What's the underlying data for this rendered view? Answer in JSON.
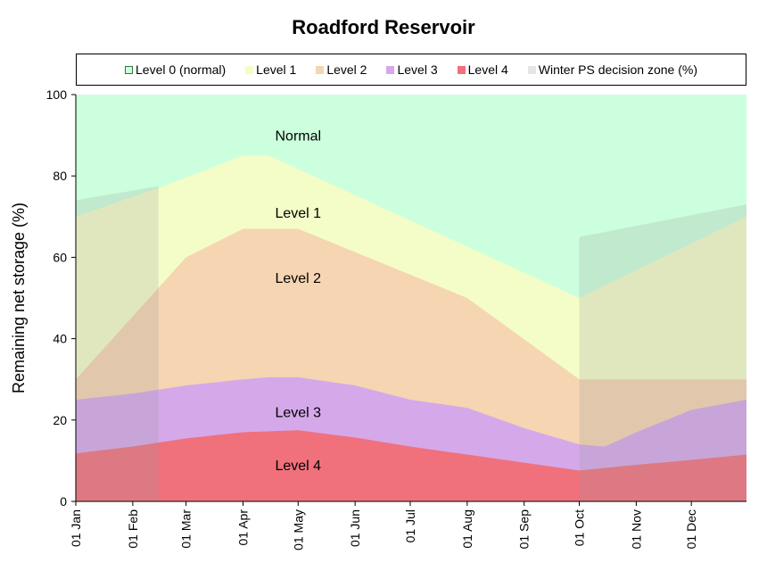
{
  "chart_data": {
    "type": "area",
    "title": "Roadford Reservoir",
    "xlabel": "",
    "ylabel": "Remaining  net storage  (%)",
    "ylim": [
      0,
      100
    ],
    "yticks": [
      "0",
      "20",
      "40",
      "60",
      "80",
      "100"
    ],
    "xlim": [
      "2000-01-01",
      "2000-12-31"
    ],
    "xticks": [
      "01 Jan",
      "01 Feb",
      "01 Mar",
      "01 Apr",
      "01 May",
      "01 Jun",
      "01 Jul",
      "01 Aug",
      "01 Sep",
      "01 Oct",
      "01 Nov",
      "01 Dec"
    ],
    "xtick_dates": [
      "2000-01-01",
      "2000-02-01",
      "2000-03-01",
      "2000-04-01",
      "2000-05-01",
      "2000-06-01",
      "2000-07-01",
      "2000-08-01",
      "2000-09-01",
      "2000-10-01",
      "2000-11-01",
      "2000-12-01"
    ],
    "grid": false,
    "legend_position": "top",
    "series": [
      {
        "name": "Level 0 (normal)",
        "color": "#ccffdd",
        "x": [
          "2000-01-01",
          "2000-12-31"
        ],
        "y": [
          100,
          100
        ]
      },
      {
        "name": "Level 1",
        "color": "#f4fdc8",
        "x": [
          "2000-01-01",
          "2000-02-15",
          "2000-04-01",
          "2000-04-15",
          "2000-10-01",
          "2000-12-31"
        ],
        "y": [
          70,
          77,
          85,
          85,
          50,
          70
        ]
      },
      {
        "name": "Level 2",
        "color": "#f5d5b2",
        "x": [
          "2000-01-01",
          "2000-03-01",
          "2000-04-01",
          "2000-05-01",
          "2000-08-01",
          "2000-10-01",
          "2000-12-31"
        ],
        "y": [
          30,
          60,
          67,
          67,
          50,
          30,
          30
        ]
      },
      {
        "name": "Level 3",
        "color": "#d5a8ea",
        "x": [
          "2000-01-01",
          "2000-02-01",
          "2000-03-01",
          "2000-04-01",
          "2000-04-15",
          "2000-05-01",
          "2000-06-01",
          "2000-07-01",
          "2000-08-01",
          "2000-09-01",
          "2000-10-01",
          "2000-10-15",
          "2000-11-01",
          "2000-12-01",
          "2000-12-31"
        ],
        "y": [
          25,
          26.5,
          28.5,
          30,
          30.5,
          30.5,
          28.5,
          25,
          23,
          18,
          14,
          13.5,
          17,
          22.5,
          25
        ]
      },
      {
        "name": "Level 4",
        "color": "#f0707c",
        "x": [
          "2000-01-01",
          "2000-02-01",
          "2000-03-01",
          "2000-04-01",
          "2000-05-01",
          "2000-06-01",
          "2000-07-01",
          "2000-08-01",
          "2000-09-01",
          "2000-10-01",
          "2000-11-01",
          "2000-12-01",
          "2000-12-31"
        ],
        "y": [
          11.8,
          13.5,
          15.5,
          17,
          17.5,
          15.7,
          13.5,
          11.5,
          9.5,
          7.6,
          9,
          10.2,
          11.5
        ]
      }
    ],
    "decision_zone": {
      "name": "Winter PS decision zone (%)",
      "color": "#e6e6e6",
      "segments": [
        {
          "x": [
            "2000-01-01",
            "2000-02-15"
          ],
          "top": [
            74,
            77.5
          ]
        },
        {
          "x": [
            "2000-10-01",
            "2000-12-31"
          ],
          "top": [
            65,
            73
          ]
        }
      ]
    },
    "annotations": [
      "Normal",
      "Level 1",
      "Level 2",
      "Level 3",
      "Level 4"
    ],
    "annotation_positions": [
      {
        "x": "2000-05-01",
        "y": 90
      },
      {
        "x": "2000-05-01",
        "y": 71
      },
      {
        "x": "2000-05-01",
        "y": 55
      },
      {
        "x": "2000-05-01",
        "y": 22
      },
      {
        "x": "2000-05-01",
        "y": 9
      }
    ]
  }
}
